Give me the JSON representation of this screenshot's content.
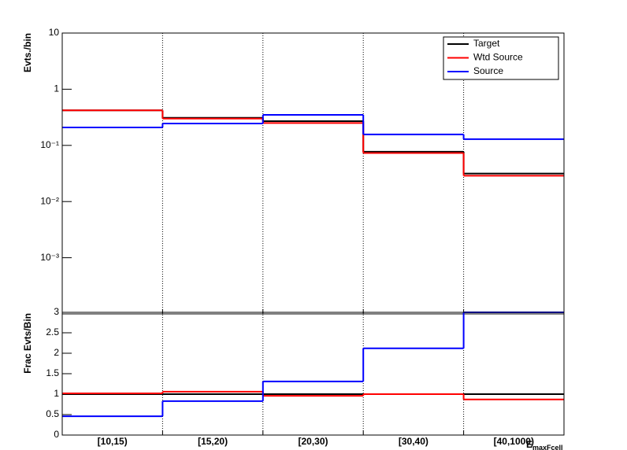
{
  "chart_data": [
    {
      "type": "step",
      "y_label": "Evts./bin",
      "log_y": true,
      "grid_x": true,
      "categories": [
        "[10,15)",
        "[15,20)",
        "[20,30)",
        "[30,40)",
        "[40,1000)"
      ],
      "series": [
        {
          "name": "Target",
          "color": "#000000",
          "values": [
            0.42,
            0.31,
            0.27,
            0.077,
            0.0315
          ]
        },
        {
          "name": "Wtd Source",
          "color": "#ff0000",
          "values": [
            0.42,
            0.3,
            0.25,
            0.073,
            0.0288
          ]
        },
        {
          "name": "Source",
          "color": "#0000ff",
          "values": [
            0.209,
            0.245,
            0.35,
            0.157,
            0.129
          ]
        }
      ],
      "ylim": [
        0.0001,
        10
      ],
      "yticks": [
        {
          "value": 0.001,
          "label": "10⁻³"
        },
        {
          "value": 0.01,
          "label": "10⁻²"
        },
        {
          "value": 0.1,
          "label": "10⁻¹"
        },
        1,
        10
      ],
      "legend": "top-right"
    },
    {
      "type": "step",
      "y_label": "Frac Evts/Bin",
      "x_label": "E",
      "x_label_sub": "maxFcell",
      "grid_x": true,
      "categories": [
        "[10,15)",
        "[15,20)",
        "[20,30)",
        "[30,40)",
        "[40,1000)"
      ],
      "series": [
        {
          "name": "Target",
          "color": "#000000",
          "values": [
            1,
            1,
            1,
            1,
            1
          ]
        },
        {
          "name": "Wtd Source",
          "color": "#ff0000",
          "values": [
            1.02,
            1.06,
            0.96,
            1.0,
            0.87
          ]
        },
        {
          "name": "Source",
          "color": "#0000ff",
          "values": [
            0.46,
            0.83,
            1.31,
            2.12,
            3.0
          ]
        }
      ],
      "ylim": [
        0,
        3
      ],
      "yticks": [
        0,
        0.5,
        1,
        1.5,
        2,
        2.5,
        3
      ]
    }
  ]
}
